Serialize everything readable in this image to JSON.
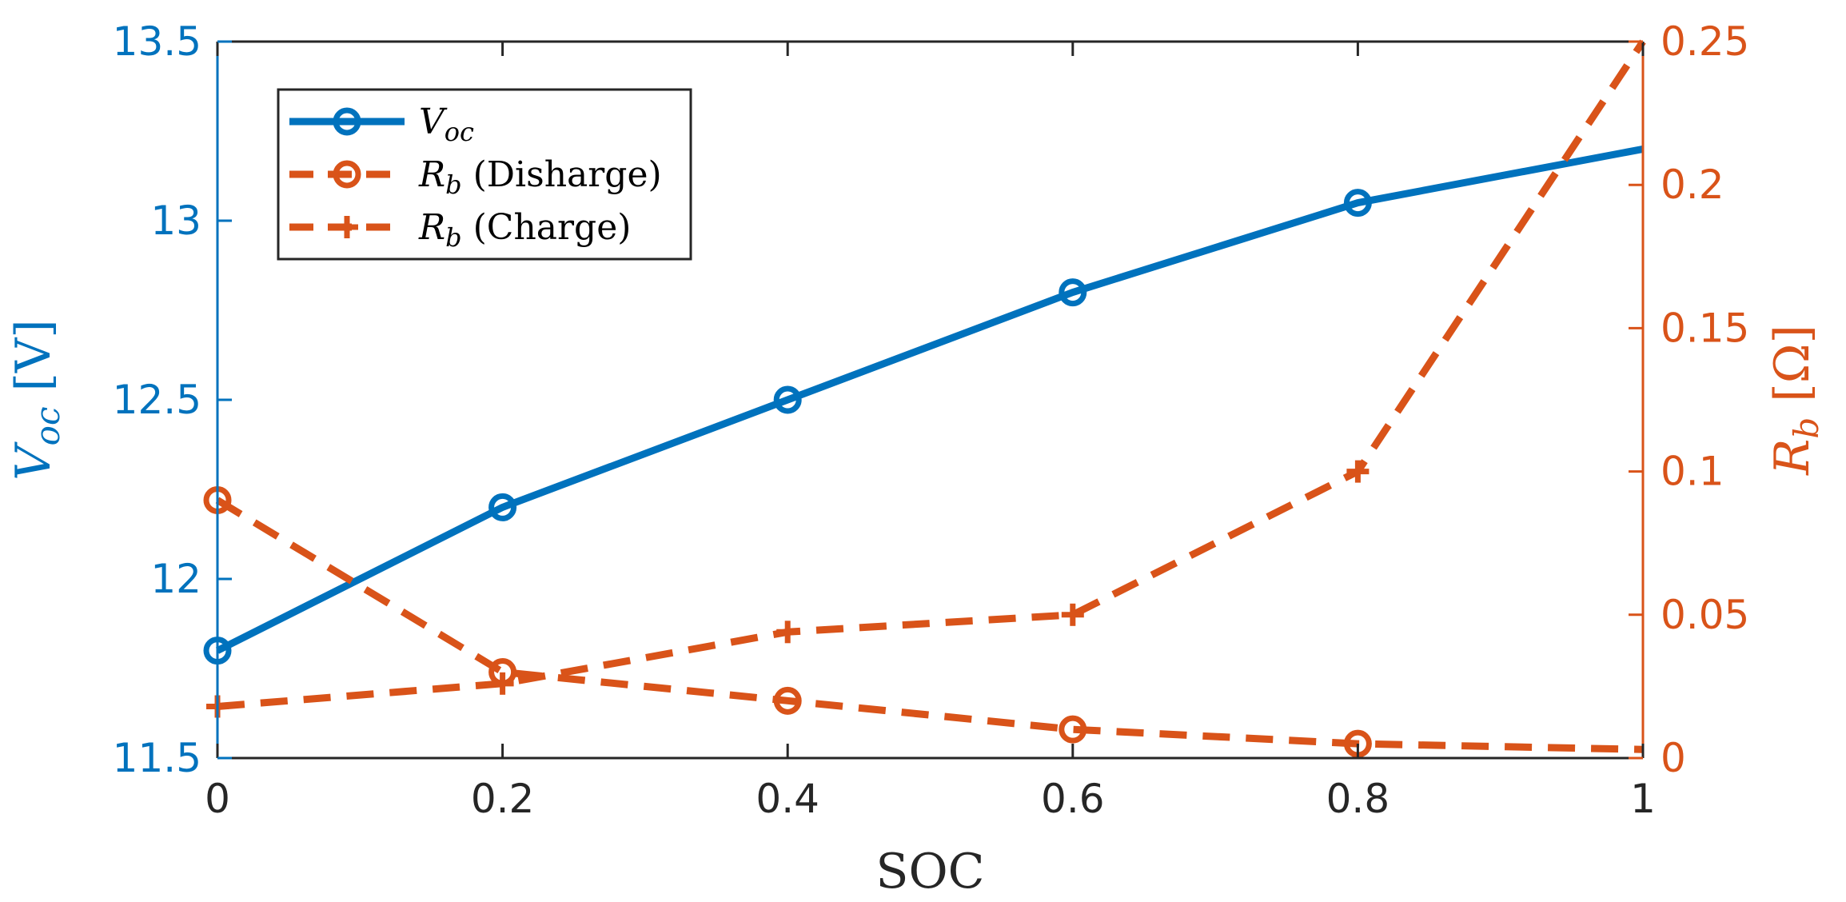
{
  "chart_data": {
    "type": "line",
    "xlabel": "SOC",
    "x": [
      0,
      0.2,
      0.4,
      0.6,
      0.8,
      1
    ],
    "xlim": [
      0,
      1
    ],
    "xticks": [
      "0",
      "0.2",
      "0.4",
      "0.6",
      "0.8",
      "1"
    ],
    "y_left": {
      "label_main": "V",
      "label_sub": "oc",
      "label_unit": " [V]",
      "lim": [
        11.5,
        13.5
      ],
      "ticks": [
        "11.5",
        "12",
        "12.5",
        "13",
        "13.5"
      ],
      "color": "#0072BD"
    },
    "y_right": {
      "label_main": "R",
      "label_sub": "b",
      "label_unit": " [Ω]",
      "lim": [
        0,
        0.25
      ],
      "ticks": [
        "0",
        "0.05",
        "0.1",
        "0.15",
        "0.2",
        "0.25"
      ],
      "color": "#D95319"
    },
    "series": [
      {
        "name_main": "V",
        "name_sub": "oc",
        "name_suffix": "",
        "axis": "left",
        "style": "solid",
        "marker": "circle",
        "color": "#0072BD",
        "x": [
          0,
          0.2,
          0.4,
          0.6,
          0.8,
          1
        ],
        "values": [
          11.8,
          12.2,
          12.5,
          12.8,
          13.05,
          13.2
        ],
        "marker_indices": [
          0,
          1,
          2,
          3,
          4
        ]
      },
      {
        "name_main": "R",
        "name_sub": "b",
        "name_suffix": " (Disharge)",
        "axis": "right",
        "style": "dashed",
        "marker": "circle",
        "color": "#D95319",
        "x": [
          0,
          0.2,
          0.4,
          0.6,
          0.8,
          1
        ],
        "values": [
          0.09,
          0.03,
          0.02,
          0.01,
          0.005,
          0.003
        ],
        "marker_indices": [
          0,
          1,
          2,
          3,
          4
        ]
      },
      {
        "name_main": "R",
        "name_sub": "b",
        "name_suffix": " (Charge)",
        "axis": "right",
        "style": "dashed",
        "marker": "plus",
        "color": "#D95319",
        "x": [
          0,
          0.2,
          0.4,
          0.6,
          0.8,
          1
        ],
        "values": [
          0.018,
          0.026,
          0.044,
          0.05,
          0.1,
          0.25
        ],
        "marker_indices": [
          0,
          1,
          2,
          3,
          4
        ]
      }
    ],
    "legend_position": "top-left",
    "grid": false
  }
}
